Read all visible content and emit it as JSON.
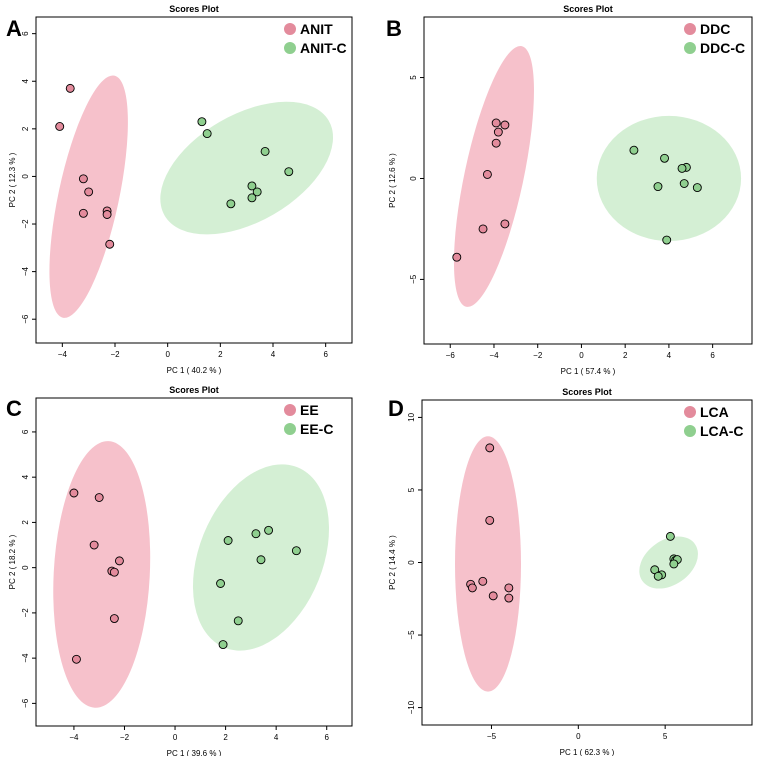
{
  "figure": {
    "panel_letters": [
      "A",
      "B",
      "C",
      "D"
    ]
  },
  "colors": {
    "group1_fill": "#f4b6c2",
    "group1_marker": "#e38b9c",
    "group2_fill": "#cdeccd",
    "group2_marker": "#8fcf8f",
    "axis": "#000000"
  },
  "chart_data": [
    {
      "type": "scatter",
      "title": "Scores Plot",
      "xlabel": "PC 1 ( 40.2 % )",
      "ylabel": "PC 2 ( 12.3 % )",
      "xlim": [
        -5.0,
        7.0
      ],
      "ylim": [
        -7.0,
        6.7
      ],
      "xticks": [
        -4,
        -2,
        0,
        2,
        4,
        6
      ],
      "yticks": [
        -6,
        -4,
        -2,
        0,
        2,
        4,
        6
      ],
      "series": [
        {
          "name": "ANIT",
          "ellipse": {
            "cx": -3.0,
            "cy": -0.85,
            "rx": 1.15,
            "ry": 5.2,
            "angle_deg": 12
          },
          "points": [
            [
              -3.7,
              3.7
            ],
            [
              -4.1,
              2.1
            ],
            [
              -3.2,
              -0.1
            ],
            [
              -3.0,
              -0.65
            ],
            [
              -3.2,
              -1.55
            ],
            [
              -2.3,
              -1.45
            ],
            [
              -2.3,
              -1.6
            ],
            [
              -2.2,
              -2.85
            ]
          ]
        },
        {
          "name": "ANIT-C",
          "ellipse": {
            "cx": 3.0,
            "cy": 0.35,
            "rx": 3.6,
            "ry": 2.25,
            "angle_deg": -30
          },
          "points": [
            [
              1.3,
              2.3
            ],
            [
              1.5,
              1.8
            ],
            [
              3.7,
              1.05
            ],
            [
              4.6,
              0.2
            ],
            [
              3.2,
              -0.4
            ],
            [
              3.4,
              -0.65
            ],
            [
              3.2,
              -0.9
            ],
            [
              2.4,
              -1.15
            ]
          ]
        }
      ],
      "legend": "top-right"
    },
    {
      "type": "scatter",
      "title": "Scores Plot",
      "xlabel": "PC 1 ( 57.4 % )",
      "ylabel": "PC 2 ( 12.6 % )",
      "xlim": [
        -7.2,
        7.8
      ],
      "ylim": [
        -8.2,
        8.0
      ],
      "xticks": [
        -6,
        -4,
        -2,
        0,
        2,
        4,
        6
      ],
      "yticks": [
        -5,
        0,
        5
      ],
      "series": [
        {
          "name": "DDC",
          "ellipse": {
            "cx": -4.0,
            "cy": 0.1,
            "rx": 1.35,
            "ry": 6.6,
            "angle_deg": 12
          },
          "points": [
            [
              -3.9,
              2.75
            ],
            [
              -3.5,
              2.65
            ],
            [
              -3.8,
              2.3
            ],
            [
              -3.9,
              1.75
            ],
            [
              -4.3,
              0.2
            ],
            [
              -3.5,
              -2.25
            ],
            [
              -4.5,
              -2.5
            ],
            [
              -5.7,
              -3.9
            ]
          ]
        },
        {
          "name": "DDC-C",
          "ellipse": {
            "cx": 4.0,
            "cy": 0.0,
            "rx": 3.3,
            "ry": 3.1,
            "angle_deg": 0
          },
          "points": [
            [
              2.4,
              1.4
            ],
            [
              3.8,
              1.0
            ],
            [
              4.8,
              0.55
            ],
            [
              4.6,
              0.5
            ],
            [
              4.7,
              -0.25
            ],
            [
              3.5,
              -0.4
            ],
            [
              5.3,
              -0.45
            ],
            [
              3.9,
              -3.05
            ]
          ]
        }
      ],
      "legend": "top-right"
    },
    {
      "type": "scatter",
      "title": "Scores Plot",
      "xlabel": "PC 1 ( 39.6 % )",
      "ylabel": "PC 2 ( 18.2 % )",
      "xlim": [
        -5.5,
        7.0
      ],
      "ylim": [
        -7.0,
        7.5
      ],
      "xticks": [
        -4,
        -2,
        0,
        2,
        4,
        6
      ],
      "yticks": [
        -6,
        -4,
        -2,
        0,
        2,
        4,
        6
      ],
      "series": [
        {
          "name": "EE",
          "ellipse": {
            "cx": -2.9,
            "cy": -0.3,
            "rx": 1.9,
            "ry": 5.9,
            "angle_deg": 3
          },
          "points": [
            [
              -4.0,
              3.3
            ],
            [
              -3.0,
              3.1
            ],
            [
              -3.2,
              1.0
            ],
            [
              -2.2,
              0.3
            ],
            [
              -2.5,
              -0.15
            ],
            [
              -2.4,
              -0.2
            ],
            [
              -2.4,
              -2.25
            ],
            [
              -3.9,
              -4.05
            ]
          ]
        },
        {
          "name": "EE-C",
          "ellipse": {
            "cx": 3.4,
            "cy": 0.45,
            "rx": 2.45,
            "ry": 4.3,
            "angle_deg": 22
          },
          "points": [
            [
              2.1,
              1.2
            ],
            [
              3.2,
              1.5
            ],
            [
              3.7,
              1.65
            ],
            [
              4.8,
              0.75
            ],
            [
              3.4,
              0.35
            ],
            [
              1.8,
              -0.7
            ],
            [
              2.5,
              -2.35
            ],
            [
              1.9,
              -3.4
            ]
          ]
        }
      ],
      "legend": "top-right"
    },
    {
      "type": "scatter",
      "title": "Scores Plot",
      "xlabel": "PC 1 ( 62.3 % )",
      "ylabel": "PC 2 ( 14.4 % )",
      "xlim": [
        -9.0,
        10.0
      ],
      "ylim": [
        -11.2,
        11.2
      ],
      "xticks": [
        -5,
        0,
        5
      ],
      "yticks": [
        -10,
        -5,
        0,
        5,
        10
      ],
      "series": [
        {
          "name": "LCA",
          "ellipse": {
            "cx": -5.2,
            "cy": -0.1,
            "rx": 1.9,
            "ry": 8.8,
            "angle_deg": 0
          },
          "points": [
            [
              -5.1,
              7.9
            ],
            [
              -5.1,
              2.9
            ],
            [
              -6.2,
              -1.5
            ],
            [
              -6.1,
              -1.75
            ],
            [
              -5.5,
              -1.3
            ],
            [
              -4.9,
              -2.3
            ],
            [
              -4.0,
              -1.75
            ],
            [
              -4.0,
              -2.45
            ]
          ]
        },
        {
          "name": "LCA-C",
          "ellipse": {
            "cx": 5.2,
            "cy": 0.0,
            "rx": 1.85,
            "ry": 1.55,
            "angle_deg": -35
          },
          "points": [
            [
              5.3,
              1.8
            ],
            [
              5.5,
              0.25
            ],
            [
              5.6,
              0.15
            ],
            [
              5.7,
              0.2
            ],
            [
              5.5,
              -0.1
            ],
            [
              4.4,
              -0.5
            ],
            [
              4.8,
              -0.85
            ],
            [
              4.6,
              -0.95
            ]
          ]
        }
      ],
      "legend": "top-right"
    }
  ]
}
